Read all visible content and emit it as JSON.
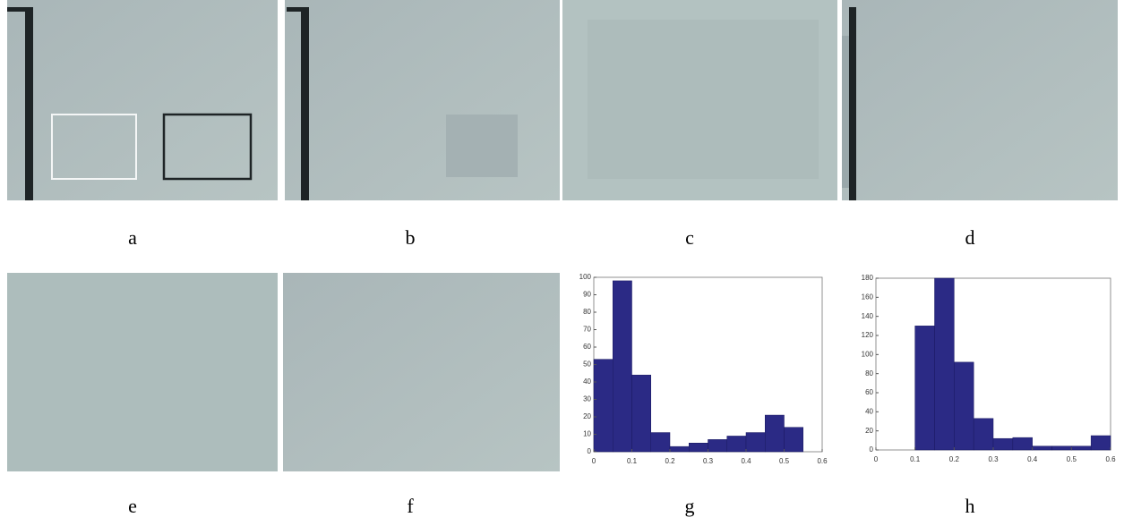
{
  "panels": [
    "a",
    "b",
    "c",
    "d",
    "e",
    "f",
    "g",
    "h"
  ],
  "chart_data": [
    {
      "type": "histogram",
      "color": "#2b2a85",
      "bins": [
        0,
        0.05,
        0.1,
        0.15,
        0.2,
        0.25,
        0.3,
        0.35,
        0.4,
        0.45,
        0.5,
        0.55
      ],
      "values": [
        53,
        98,
        44,
        11,
        3,
        5,
        7,
        9,
        11,
        21,
        14
      ],
      "xlim": [
        0,
        0.6
      ],
      "xticks": [
        0,
        0.1,
        0.2,
        0.3,
        0.4,
        0.5,
        0.6
      ],
      "ylim": [
        0,
        100
      ],
      "yticks": [
        0,
        10,
        20,
        30,
        40,
        50,
        60,
        70,
        80,
        90,
        100
      ]
    },
    {
      "type": "histogram",
      "color": "#2b2a85",
      "bins": [
        0.1,
        0.15,
        0.2,
        0.25,
        0.3,
        0.35,
        0.4,
        0.45,
        0.5,
        0.55,
        0.6
      ],
      "values": [
        130,
        180,
        92,
        33,
        12,
        13,
        4,
        4,
        4,
        15
      ],
      "xlim": [
        0,
        0.6
      ],
      "xticks": [
        0,
        0.1,
        0.2,
        0.3,
        0.4,
        0.5,
        0.6
      ],
      "ylim": [
        0,
        180
      ],
      "yticks": [
        0,
        20,
        40,
        60,
        80,
        100,
        120,
        140,
        160,
        180
      ]
    }
  ]
}
